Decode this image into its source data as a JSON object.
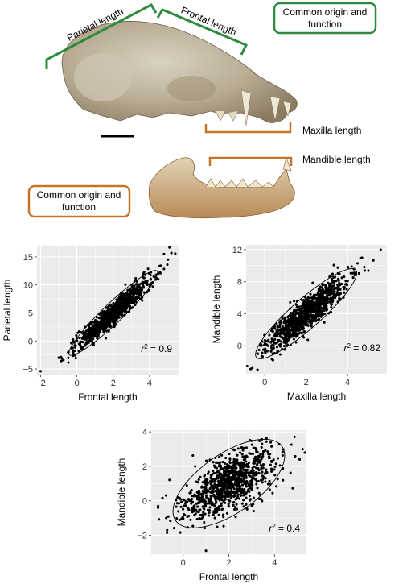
{
  "annotations": {
    "parietal": "Parietal length",
    "frontal": "Frontal length",
    "common_top": [
      "Common origin and",
      "function"
    ],
    "maxilla": "Maxilla length",
    "mandible": "Mandible length",
    "common_bottom": [
      "Common origin and",
      "function"
    ]
  },
  "colors": {
    "green": "#2e8b3e",
    "orange": "#c8732a",
    "panel_bg": "#ebebeb",
    "grid": "#ffffff",
    "point": "#000000"
  },
  "chart_data": [
    {
      "type": "scatter",
      "xlabel": "Frontal length",
      "ylabel": "Parietal length",
      "xlim": [
        -2.2,
        5.6
      ],
      "ylim": [
        -6,
        17
      ],
      "xticks": [
        -2,
        0,
        2,
        4
      ],
      "yticks": [
        -5,
        0,
        5,
        10,
        15
      ],
      "grid": true,
      "r2_label": "r2 = 0.9",
      "r2_value": 0.9,
      "ellipse": true,
      "n_points": 1000,
      "x_mean": 2.0,
      "x_sd": 1.0,
      "y_mean": 5.0,
      "y_sd": 3.1,
      "outliers": [
        [
          -2.0,
          -5.4
        ],
        [
          5.1,
          16.7
        ],
        [
          -1.0,
          -3.0
        ],
        [
          4.8,
          15.5
        ]
      ]
    },
    {
      "type": "scatter",
      "xlabel": "Maxilla length",
      "ylabel": "Mandible length",
      "xlim": [
        -0.9,
        5.9
      ],
      "ylim": [
        -3.5,
        12.6
      ],
      "xticks": [
        0,
        2,
        4
      ],
      "yticks": [
        0,
        4,
        8,
        12
      ],
      "grid": true,
      "r2_label": "r2 = 0.82",
      "r2_value": 0.82,
      "ellipse": true,
      "n_points": 1000,
      "x_mean": 2.0,
      "x_sd": 1.0,
      "y_mean": 4.0,
      "y_sd": 2.3,
      "outliers": [
        [
          5.6,
          12.0
        ],
        [
          -0.6,
          -2.8
        ],
        [
          4.7,
          11.0
        ]
      ]
    },
    {
      "type": "scatter",
      "xlabel": "Frontal length",
      "ylabel": "Mandible length",
      "xlim": [
        -1.4,
        5.4
      ],
      "ylim": [
        -3.1,
        4.1
      ],
      "xticks": [
        0,
        2,
        4
      ],
      "yticks": [
        -2,
        0,
        2,
        4
      ],
      "grid": true,
      "r2_label": "r2 = 0.4",
      "r2_value": 0.4,
      "ellipse": true,
      "n_points": 1000,
      "x_mean": 2.0,
      "x_sd": 1.0,
      "y_mean": 1.0,
      "y_sd": 1.05,
      "outliers": [
        [
          -1.1,
          -0.4
        ],
        [
          5.1,
          2.4
        ],
        [
          1.0,
          -2.9
        ]
      ]
    }
  ]
}
